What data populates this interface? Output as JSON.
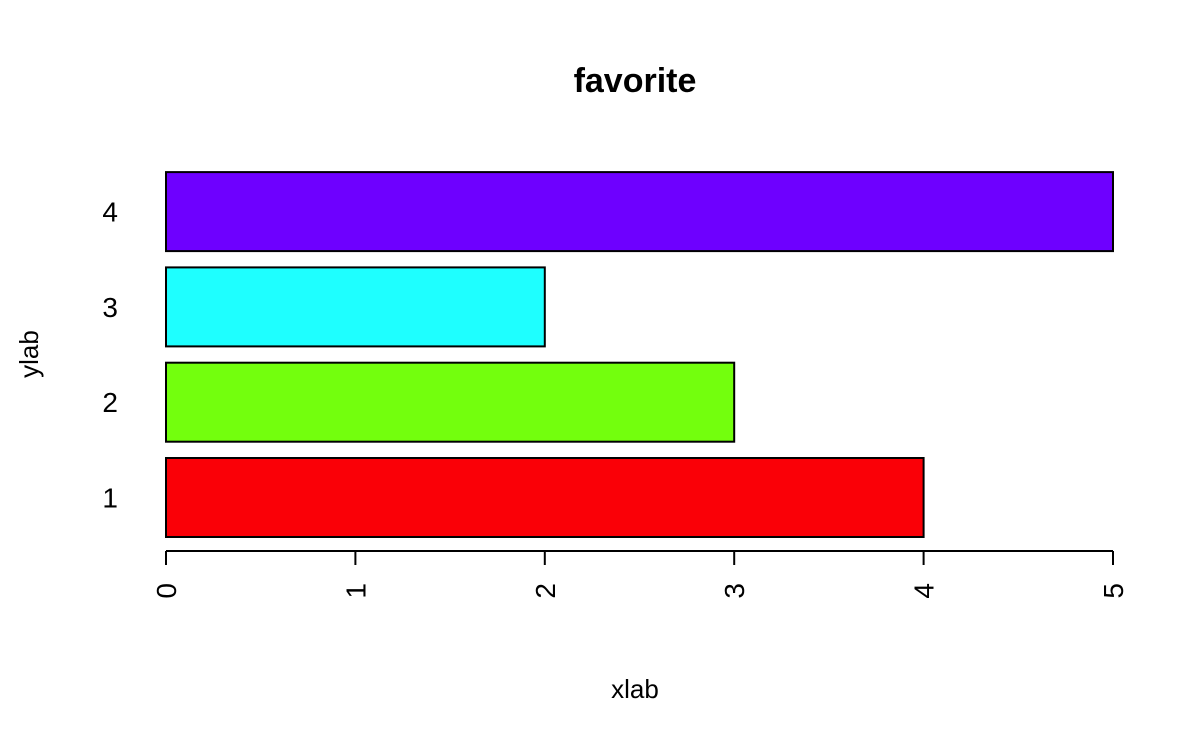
{
  "chart_data": {
    "type": "bar",
    "orientation": "horizontal",
    "title": "favorite",
    "xlabel": "xlab",
    "ylabel": "ylab",
    "categories": [
      "1",
      "2",
      "3",
      "4"
    ],
    "values": [
      4,
      3,
      2,
      5
    ],
    "colors": [
      "#fa0007",
      "#73ff0d",
      "#1effff",
      "#6e00ff"
    ],
    "xlim": [
      0,
      5
    ],
    "x_ticks": [
      0,
      1,
      2,
      3,
      4,
      5
    ],
    "grid": false,
    "legend": "none"
  }
}
